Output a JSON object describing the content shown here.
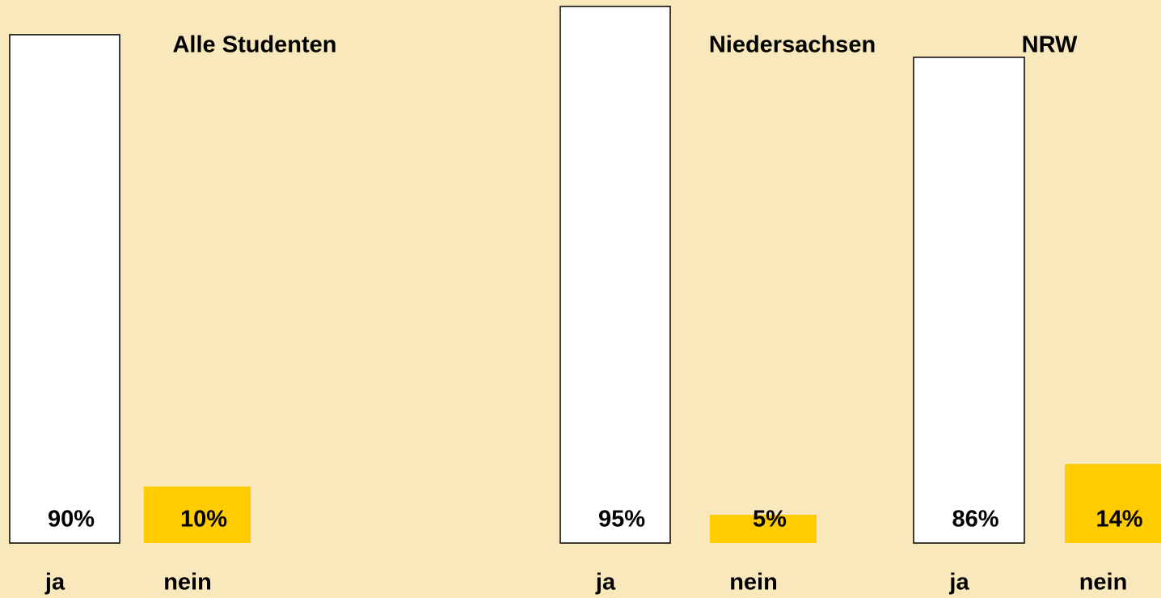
{
  "chart_data": [
    {
      "type": "bar",
      "title": "Alle Studenten",
      "categories": [
        "ja",
        "nein"
      ],
      "values": [
        90,
        10
      ],
      "value_labels": [
        "90%",
        "10%"
      ],
      "colors": [
        "#ffffff",
        "#ffcc00"
      ]
    },
    {
      "type": "bar",
      "title": "Niedersachsen",
      "categories": [
        "ja",
        "nein"
      ],
      "values": [
        95,
        5
      ],
      "value_labels": [
        "95%",
        "5%"
      ],
      "colors": [
        "#ffffff",
        "#ffcc00"
      ]
    },
    {
      "type": "bar",
      "title": "NRW",
      "categories": [
        "ja",
        "nein"
      ],
      "values": [
        86,
        14
      ],
      "value_labels": [
        "86%",
        "14%"
      ],
      "colors": [
        "#ffffff",
        "#ffcc00"
      ]
    }
  ]
}
